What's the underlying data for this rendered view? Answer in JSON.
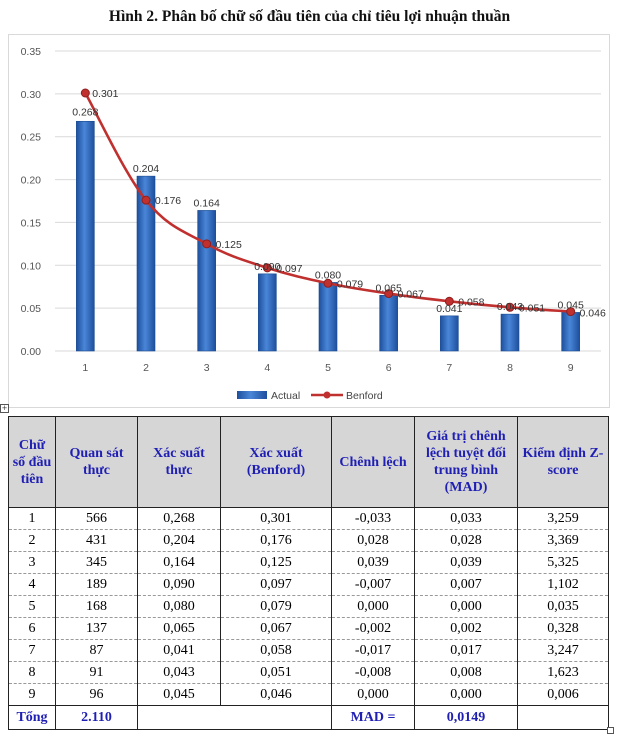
{
  "title": "Hình 2. Phân bố chữ số đầu tiên của chỉ tiêu lợi nhuận thuần",
  "chart_data": {
    "type": "bar",
    "categories": [
      "1",
      "2",
      "3",
      "4",
      "5",
      "6",
      "7",
      "8",
      "9"
    ],
    "series": [
      {
        "name": "Actual",
        "kind": "bar",
        "color": "#2e6bc4",
        "values": [
          0.268,
          0.204,
          0.164,
          0.09,
          0.08,
          0.065,
          0.041,
          0.043,
          0.045
        ],
        "labels": [
          "0.268",
          "0.204",
          "0.164",
          "0.090",
          "0.080",
          "0.065",
          "0.041",
          "0.043",
          "0.045"
        ]
      },
      {
        "name": "Benford",
        "kind": "line",
        "color": "#c0302f",
        "values": [
          0.301,
          0.176,
          0.125,
          0.097,
          0.079,
          0.067,
          0.058,
          0.051,
          0.046
        ],
        "labels": [
          "0.301",
          "0.176",
          "0.125",
          "0.097",
          "0.079",
          "0.067",
          "0.058",
          "0.051",
          "0.046"
        ]
      }
    ],
    "yticks": [
      "0.00",
      "0.05",
      "0.10",
      "0.15",
      "0.20",
      "0.25",
      "0.30",
      "0.35"
    ],
    "ylim": [
      0,
      0.35
    ],
    "grid": true,
    "legend": "bottom"
  },
  "table": {
    "headers": [
      "Chữ số đầu tiên",
      "Quan sát thực",
      "Xác suất thực",
      "Xác xuất (Benford)",
      "Chênh lệch",
      "Giá trị chênh lệch tuyệt đối trung bình (MAD)",
      "Kiểm định Z-score"
    ],
    "rows": [
      [
        "1",
        "566",
        "0,268",
        "0,301",
        "-0,033",
        "0,033",
        "3,259"
      ],
      [
        "2",
        "431",
        "0,204",
        "0,176",
        "0,028",
        "0,028",
        "3,369"
      ],
      [
        "3",
        "345",
        "0,164",
        "0,125",
        "0,039",
        "0,039",
        "5,325"
      ],
      [
        "4",
        "189",
        "0,090",
        "0,097",
        "-0,007",
        "0,007",
        "1,102"
      ],
      [
        "5",
        "168",
        "0,080",
        "0,079",
        "0,000",
        "0,000",
        "0,035"
      ],
      [
        "6",
        "137",
        "0,065",
        "0,067",
        "-0,002",
        "0,002",
        "0,328"
      ],
      [
        "7",
        "87",
        "0,041",
        "0,058",
        "-0,017",
        "0,017",
        "3,247"
      ],
      [
        "8",
        "91",
        "0,043",
        "0,051",
        "-0,008",
        "0,008",
        "1,623"
      ],
      [
        "9",
        "96",
        "0,045",
        "0,046",
        "0,000",
        "0,000",
        "0,006"
      ]
    ],
    "total": {
      "label": "Tổng",
      "count": "2.110",
      "mad_label": "MAD =",
      "mad_value": "0,0149"
    }
  }
}
